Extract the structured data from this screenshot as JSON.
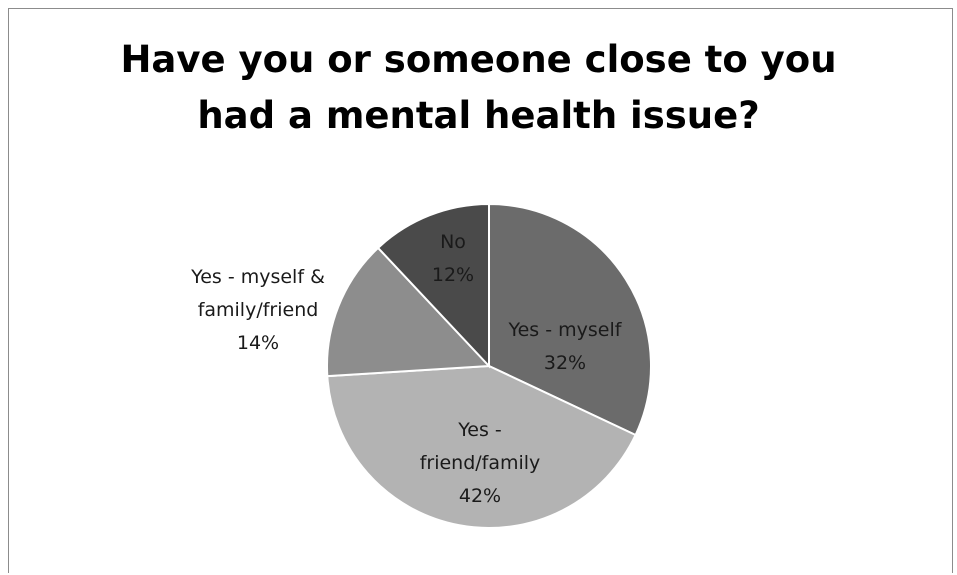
{
  "chart_data": {
    "type": "pie",
    "title_lines": [
      "Have you or someone close to you",
      "had a mental health issue?"
    ],
    "slices": [
      {
        "label": "Yes - myself",
        "value": 32,
        "value_label": "32%",
        "color": "#6b6b6b"
      },
      {
        "label": "Yes - friend/family",
        "value": 42,
        "value_label": "42%",
        "color": "#b3b3b3"
      },
      {
        "label": "Yes - myself & family/friend",
        "value": 14,
        "value_label": "14%",
        "color": "#8d8d8d"
      },
      {
        "label": "No",
        "value": 12,
        "value_label": "12%",
        "color": "#4a4a4a"
      }
    ],
    "start_angle_deg": 0,
    "direction": "clockwise",
    "legend": "none",
    "grid": false
  }
}
